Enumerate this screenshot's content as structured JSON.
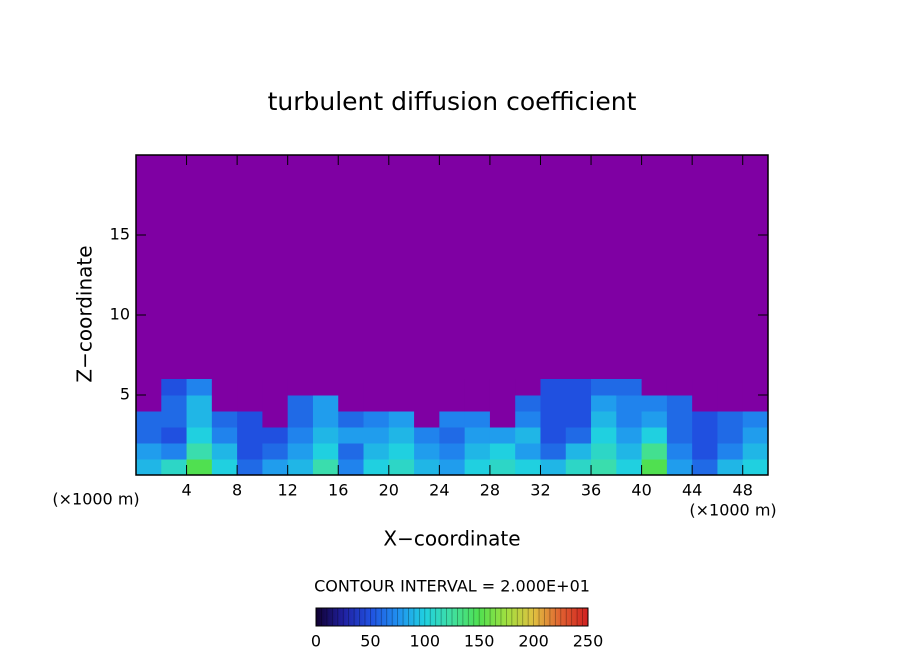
{
  "chart_data": {
    "type": "heatmap",
    "title": "turbulent diffusion coefficient",
    "x_label": "X−coordinate",
    "y_label": "Z−coordinate",
    "x_unit_left": "(×1000 m)",
    "x_unit_right": "(×1000 m)",
    "xlim": [
      0,
      50
    ],
    "ylim": [
      0,
      20
    ],
    "xticks": [
      4,
      8,
      12,
      16,
      20,
      24,
      28,
      32,
      36,
      40,
      44,
      48
    ],
    "yticks": [
      5,
      10,
      15
    ],
    "x": [
      1,
      3,
      5,
      7,
      9,
      11,
      13,
      15,
      17,
      19,
      21,
      23,
      25,
      27,
      29,
      31,
      33,
      35,
      37,
      39,
      41,
      43,
      45,
      47,
      49
    ],
    "z": [
      0.5,
      1.5,
      2.5,
      3.5,
      4.5,
      5.5
    ],
    "values": [
      [
        90,
        110,
        150,
        100,
        60,
        80,
        90,
        120,
        70,
        100,
        110,
        90,
        80,
        100,
        110,
        100,
        90,
        110,
        120,
        100,
        150,
        80,
        60,
        90,
        100
      ],
      [
        80,
        70,
        120,
        90,
        50,
        60,
        80,
        100,
        60,
        90,
        100,
        80,
        70,
        90,
        100,
        80,
        60,
        90,
        110,
        90,
        130,
        70,
        50,
        70,
        90
      ],
      [
        60,
        50,
        100,
        70,
        50,
        50,
        70,
        90,
        80,
        80,
        90,
        70,
        60,
        80,
        80,
        90,
        50,
        60,
        100,
        80,
        100,
        60,
        50,
        60,
        80
      ],
      [
        60,
        60,
        90,
        60,
        50,
        0,
        60,
        80,
        60,
        70,
        80,
        0,
        70,
        70,
        0,
        70,
        50,
        50,
        90,
        70,
        80,
        60,
        50,
        60,
        70
      ],
      [
        0,
        60,
        90,
        0,
        0,
        0,
        60,
        80,
        0,
        0,
        0,
        0,
        0,
        0,
        0,
        60,
        50,
        50,
        80,
        70,
        70,
        60,
        0,
        0,
        0
      ],
      [
        0,
        50,
        70,
        0,
        0,
        0,
        0,
        0,
        0,
        0,
        0,
        0,
        0,
        0,
        0,
        0,
        50,
        50,
        60,
        60,
        0,
        0,
        0,
        0,
        0
      ]
    ],
    "contour_interval_label": "CONTOUR INTERVAL = 2.000E+01",
    "contour_interval": 20,
    "under_color": "#7f00a3",
    "colorbar_lim": [
      0,
      250
    ],
    "colorbar_ticks": [
      0,
      50,
      100,
      150,
      200,
      250
    ],
    "colormap": [
      "#100030",
      "#2020a0",
      "#2050e0",
      "#2090f0",
      "#20d0e0",
      "#40e0a0",
      "#50e050",
      "#a0e040",
      "#e0c040",
      "#e06030",
      "#d02020"
    ]
  }
}
